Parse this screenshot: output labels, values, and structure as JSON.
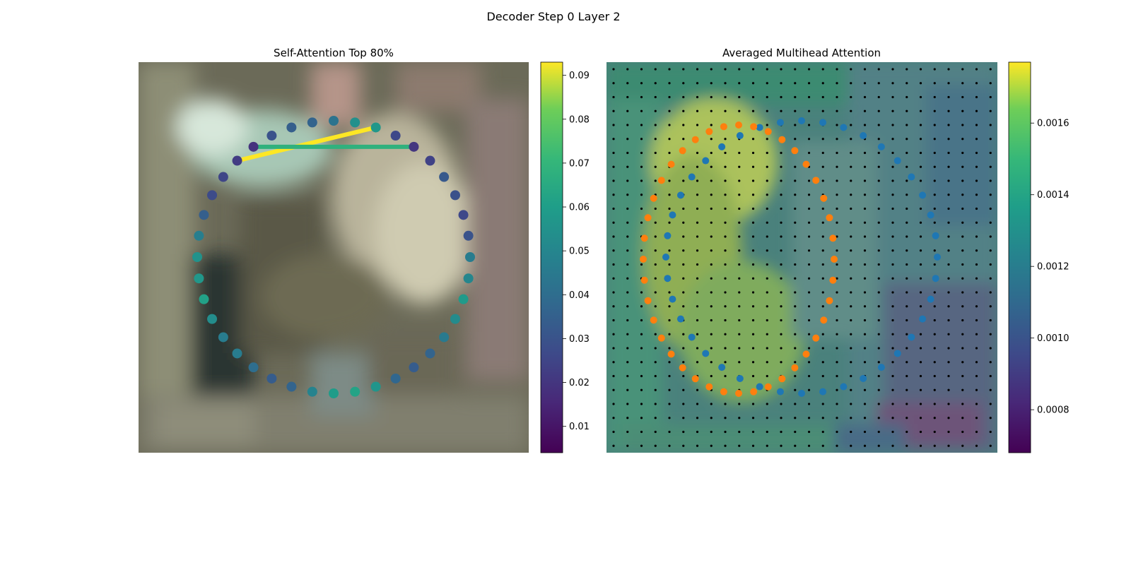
{
  "figure_title": "Decoder Step 0 Layer 2",
  "colors": {
    "background": "#ffffff",
    "viridis_low": "#440154",
    "viridis_high": "#fde725",
    "initial_points": "#1f77b4",
    "predicted_points": "#ff7f0e",
    "grid_dots": "#000000"
  },
  "chart_data": [
    {
      "type": "scatter",
      "title": "Self-Attention Top 80%",
      "background": "blurred photo (street scene)",
      "colormap": "viridis",
      "colorbar": {
        "ticks": [
          "0.01",
          "0.02",
          "0.03",
          "0.04",
          "0.05",
          "0.06",
          "0.07",
          "0.08",
          "0.09"
        ],
        "range": [
          0.004,
          0.093
        ]
      },
      "points": {
        "count": 40,
        "shape": "circle",
        "values": [
          0.046,
          0.05,
          0.058,
          0.052,
          0.045,
          0.036,
          0.033,
          0.037,
          0.056,
          0.062,
          0.059,
          0.049,
          0.036,
          0.033,
          0.04,
          0.046,
          0.046,
          0.053,
          0.061,
          0.057,
          0.055,
          0.047,
          0.034,
          0.027,
          0.025,
          0.022,
          0.019,
          0.03,
          0.034,
          0.036,
          0.042,
          0.054,
          0.057,
          0.026,
          0.02,
          0.024,
          0.032,
          0.029,
          0.026,
          0.03
        ]
      },
      "attention_edges": [
        {
          "from": 25,
          "to": 32,
          "value": 0.093
        },
        {
          "from": 26,
          "to": 34,
          "value": 0.068
        }
      ]
    },
    {
      "type": "heatmap",
      "title": "Averaged Multihead Attention",
      "colormap": "viridis",
      "colorbar": {
        "ticks": [
          "0.0008",
          "0.0010",
          "0.0012",
          "0.0014",
          "0.0016"
        ],
        "range": [
          0.00068,
          0.00177
        ]
      },
      "grid": {
        "rows": 28,
        "cols": 28
      },
      "series": [
        {
          "color": "#1f77b4",
          "count": 40
        },
        {
          "color": "#ff7f0e",
          "count": 40
        }
      ]
    }
  ]
}
